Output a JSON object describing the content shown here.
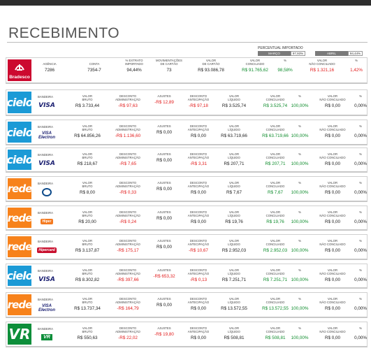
{
  "title": "RECEBIMENTO",
  "percentual": {
    "title": "PERCENTUAL IMPORTADO",
    "months": [
      {
        "label": "MARÇO",
        "value": "97,93%"
      },
      {
        "label": "ABRIL",
        "value": "94,44%"
      }
    ]
  },
  "labels": {
    "bandeira": "BANDEIRA",
    "valor_bruto": "VALOR\nBRUTO",
    "desc_adm": "DESCONTO\nADMINISTRAÇÃO",
    "ajustes": "AJUSTES",
    "desc_ant": "DESCONTO\nANTECIPAÇÃO",
    "valor_liquido": "VALOR\nLÍQUIDO",
    "valor_conciliado": "VALOR\nCONCILIADO",
    "pct": "%",
    "valor_nao_conciliado": "VALOR\nNÃO CONCILIADO"
  },
  "bank": {
    "logo": "bradesco-logo",
    "name": "Bradesco",
    "agencia_label": "AGÊNCIA",
    "agencia": "7286",
    "conta_label": "CONTA",
    "conta": "7354-7",
    "extrato_label": "% EXTRATO\nIMPORTADO",
    "extrato": "94,44%",
    "mov_label": "MOVIMENTAÇÕES\nDE CARTÃO",
    "mov": "73",
    "vcartao_label": "VALOR\nDE CARTÃO",
    "vcartao": "R$ 93.086,78",
    "vconc_label": "VALOR\nCONCILIADO",
    "vconc": "R$ 91.765,62",
    "pct_conc": "98,58%",
    "vnconc_label": "VALOR\nNÃO CONCILIADO",
    "vnconc": "R$ 1.321,16",
    "pct_nconc": "1,42%"
  },
  "rows": [
    {
      "acquirer": "cielo",
      "acquirer_label": "cielo",
      "bandeira": "VISA",
      "bruto": "R$ 3.733,44",
      "adm": "-R$ 97,63",
      "ajustes": "-R$ 12,89",
      "ant": "-R$ 97,18",
      "liquido": "R$ 3.525,74",
      "conciliado": "R$ 3.525,74",
      "pct_conc": "100,00%",
      "nao_conciliado": "R$ 0,00",
      "pct_nconc": "0,00%"
    },
    {
      "acquirer": "cielo",
      "acquirer_label": "cielo",
      "bandeira": "VISA Electron",
      "bruto": "R$ 64.856,26",
      "adm": "-R$ 1.136,60",
      "ajustes": "R$ 0,00",
      "ant": "R$ 0,00",
      "liquido": "R$ 63.719,66",
      "conciliado": "R$ 63.719,66",
      "pct_conc": "100,00%",
      "nao_conciliado": "R$ 0,00",
      "pct_nconc": "0,00%"
    },
    {
      "acquirer": "cielo",
      "acquirer_label": "cielo",
      "bandeira": "VISA",
      "bruto": "R$ 218,67",
      "adm": "-R$ 7,65",
      "ajustes": "R$ 0,00",
      "ant": "-R$ 3,31",
      "liquido": "R$ 207,71",
      "conciliado": "R$ 207,71",
      "pct_conc": "100,00%",
      "nao_conciliado": "R$ 0,00",
      "pct_nconc": "0,00%"
    },
    {
      "acquirer": "rede",
      "acquirer_label": "rede",
      "bandeira": "Diners",
      "bruto": "R$ 8,00",
      "adm": "-R$ 0,33",
      "ajustes": "R$ 0,00",
      "ant": "R$ 0,00",
      "liquido": "R$ 7,67",
      "conciliado": "R$ 7,67",
      "pct_conc": "100,00%",
      "nao_conciliado": "R$ 0,00",
      "pct_nconc": "0,00%"
    },
    {
      "acquirer": "rede",
      "acquirer_label": "rede",
      "bandeira": "Hiper",
      "bruto": "R$ 20,00",
      "adm": "-R$ 0,24",
      "ajustes": "R$ 0,00",
      "ant": "R$ 0,00",
      "liquido": "R$ 19,76",
      "conciliado": "R$ 19,76",
      "pct_conc": "100,00%",
      "nao_conciliado": "R$ 0,00",
      "pct_nconc": "0,00%"
    },
    {
      "acquirer": "rede",
      "acquirer_label": "rede",
      "bandeira": "Hipercard",
      "bruto": "R$ 3.137,87",
      "adm": "-R$ 175,17",
      "ajustes": "R$ 0,00",
      "ant": "-R$ 10,67",
      "liquido": "R$ 2.952,03",
      "conciliado": "R$ 2.952,03",
      "pct_conc": "100,00%",
      "nao_conciliado": "R$ 0,00",
      "pct_nconc": "0,00%"
    },
    {
      "acquirer": "cielo",
      "acquirer_label": "cielo",
      "bandeira": "VISA",
      "bruto": "R$ 8.302,82",
      "adm": "-R$ 397,66",
      "ajustes": "-R$ 653,32",
      "ant": "-R$ 0,13",
      "liquido": "R$ 7.251,71",
      "conciliado": "R$ 7.251,71",
      "pct_conc": "100,00%",
      "nao_conciliado": "R$ 0,00",
      "pct_nconc": "0,00%"
    },
    {
      "acquirer": "rede",
      "acquirer_label": "rede",
      "bandeira": "VISA Electron",
      "bruto": "R$ 13.737,34",
      "adm": "-R$ 164,79",
      "ajustes": "R$ 0,00",
      "ant": "R$ 0,00",
      "liquido": "R$ 13.572,55",
      "conciliado": "R$ 13.572,55",
      "pct_conc": "100,00%",
      "nao_conciliado": "R$ 0,00",
      "pct_nconc": "0,00%"
    },
    {
      "acquirer": "vr",
      "acquirer_label": "VR",
      "bandeira": "VR",
      "bruto": "R$ 550,63",
      "adm": "-R$ 22,02",
      "ajustes": "-R$ 19,80",
      "ant": "R$ 0,00",
      "liquido": "R$ 508,81",
      "conciliado": "R$ 508,81",
      "pct_conc": "100,00%",
      "nao_conciliado": "R$ 0,00",
      "pct_nconc": "0,00%"
    }
  ]
}
